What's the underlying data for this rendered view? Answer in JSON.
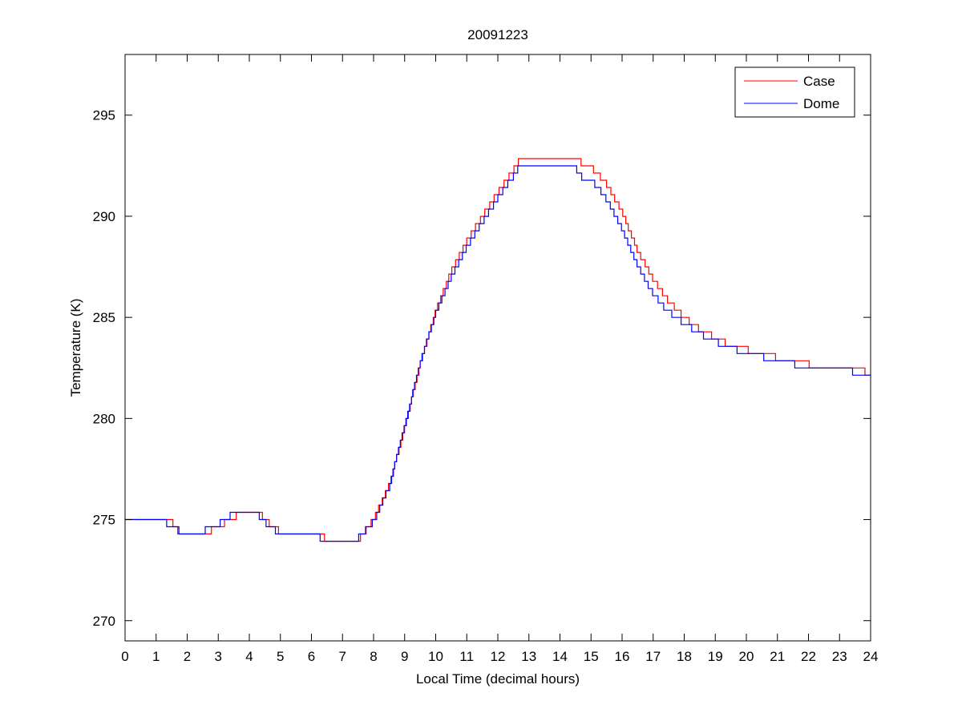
{
  "chart_data": {
    "type": "line",
    "title": "20091223",
    "xlabel": "Local Time (decimal hours)",
    "ylabel": "Temperature (K)",
    "xlim": [
      0,
      24
    ],
    "ylim": [
      269,
      298
    ],
    "xticks": [
      0,
      1,
      2,
      3,
      4,
      5,
      6,
      7,
      8,
      9,
      10,
      11,
      12,
      13,
      14,
      15,
      16,
      17,
      18,
      19,
      20,
      21,
      22,
      23,
      24
    ],
    "yticks": [
      270,
      275,
      280,
      285,
      290,
      295
    ],
    "grid": false,
    "legend_position": "top-right",
    "quantization_K": 0.357,
    "series": [
      {
        "name": "Case",
        "color": "#ff0000",
        "points": [
          [
            0,
            274.95
          ],
          [
            1.5,
            274.9
          ],
          [
            1.6,
            274.55
          ],
          [
            2.1,
            274.2
          ],
          [
            2.6,
            274.3
          ],
          [
            2.9,
            274.6
          ],
          [
            3.3,
            274.9
          ],
          [
            3.6,
            275.2
          ],
          [
            4.4,
            275.2
          ],
          [
            4.8,
            274.55
          ],
          [
            5.3,
            274.2
          ],
          [
            6.3,
            274.2
          ],
          [
            6.6,
            273.95
          ],
          [
            7.5,
            273.95
          ],
          [
            8,
            275.0
          ],
          [
            8.5,
            276.7
          ],
          [
            9,
            279.5
          ],
          [
            9.5,
            282.7
          ],
          [
            10,
            285.3
          ],
          [
            10.5,
            287.3
          ],
          [
            11,
            288.8
          ],
          [
            11.5,
            290.0
          ],
          [
            12,
            291.2
          ],
          [
            12.5,
            292.3
          ],
          [
            12.8,
            293.0
          ],
          [
            14.6,
            293.0
          ],
          [
            14.7,
            292.5
          ],
          [
            15.1,
            292.3
          ],
          [
            15.5,
            291.6
          ],
          [
            16.0,
            290.2
          ],
          [
            16.5,
            288.3
          ],
          [
            17.0,
            286.9
          ],
          [
            17.5,
            285.8
          ],
          [
            18.0,
            285.0
          ],
          [
            18.5,
            284.4
          ],
          [
            19.0,
            284.0
          ],
          [
            19.5,
            283.6
          ],
          [
            20.3,
            283.3
          ],
          [
            21.0,
            283.0
          ],
          [
            22.0,
            282.7
          ],
          [
            22.2,
            282.45
          ],
          [
            23.8,
            282.45
          ],
          [
            23.85,
            282.1
          ],
          [
            24,
            282.1
          ]
        ]
      },
      {
        "name": "Dome",
        "color": "#0000ff",
        "points": [
          [
            0,
            274.9
          ],
          [
            1.3,
            274.9
          ],
          [
            1.4,
            274.55
          ],
          [
            1.9,
            274.4
          ],
          [
            2.0,
            274.2
          ],
          [
            2.4,
            274.4
          ],
          [
            2.9,
            274.6
          ],
          [
            3.1,
            274.9
          ],
          [
            3.4,
            275.2
          ],
          [
            4.3,
            275.2
          ],
          [
            4.7,
            274.55
          ],
          [
            5.2,
            274.2
          ],
          [
            6.2,
            274.2
          ],
          [
            6.4,
            273.95
          ],
          [
            7.4,
            273.95
          ],
          [
            8,
            274.9
          ],
          [
            8.5,
            276.6
          ],
          [
            9,
            279.6
          ],
          [
            9.5,
            282.8
          ],
          [
            10,
            285.2
          ],
          [
            10.5,
            287.0
          ],
          [
            11,
            288.5
          ],
          [
            11.5,
            289.7
          ],
          [
            12,
            290.9
          ],
          [
            12.5,
            292.0
          ],
          [
            12.7,
            292.5
          ],
          [
            14.5,
            292.5
          ],
          [
            14.6,
            292.0
          ],
          [
            15.0,
            291.8
          ],
          [
            15.4,
            291.1
          ],
          [
            15.9,
            289.7
          ],
          [
            16.4,
            287.9
          ],
          [
            16.9,
            286.4
          ],
          [
            17.4,
            285.4
          ],
          [
            17.9,
            284.8
          ],
          [
            18.5,
            284.2
          ],
          [
            19.0,
            283.8
          ],
          [
            19.5,
            283.5
          ],
          [
            20.0,
            283.2
          ],
          [
            21.0,
            282.9
          ],
          [
            22.0,
            282.5
          ],
          [
            23.4,
            282.45
          ],
          [
            23.45,
            282.1
          ],
          [
            24,
            282.1
          ]
        ]
      }
    ]
  }
}
